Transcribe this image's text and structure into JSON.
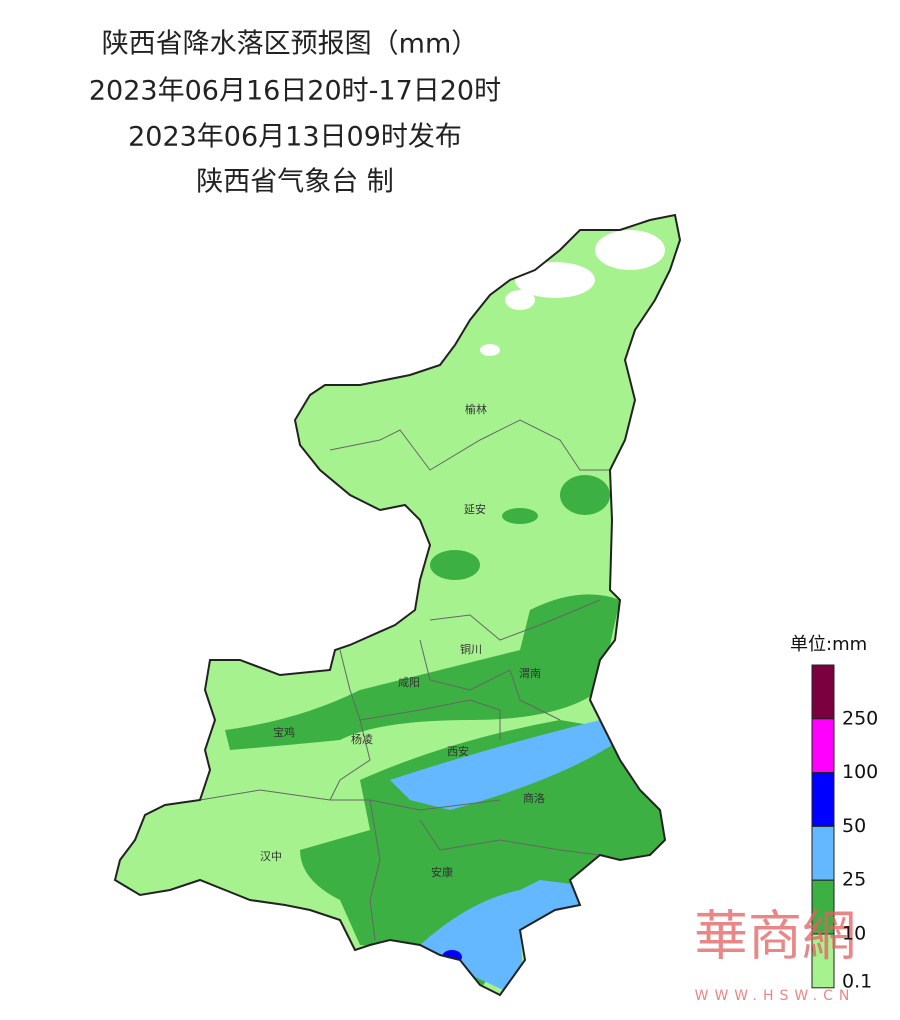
{
  "header": {
    "lines": [
      "陕西省降水落区预报图（mm）",
      "2023年06月16日20时-17日20时",
      "2023年06月13日09时发布",
      "陕西省气象台 制"
    ]
  },
  "cities": [
    "榆林",
    "延安",
    "铜川",
    "咸阳",
    "渭南",
    "宝鸡",
    "杨凌",
    "西安",
    "商洛",
    "汉中",
    "安康"
  ],
  "legend": {
    "unit": "单位:mm",
    "ticks": [
      250,
      100,
      50,
      25,
      10,
      0.1
    ],
    "colors": [
      "#7a0040",
      "#ff00ff",
      "#0000ff",
      "#63b8ff",
      "#3cb043",
      "#a6f28f"
    ]
  },
  "watermark": {
    "brand": "華商網",
    "url": "WWW.HSW.CN"
  }
}
